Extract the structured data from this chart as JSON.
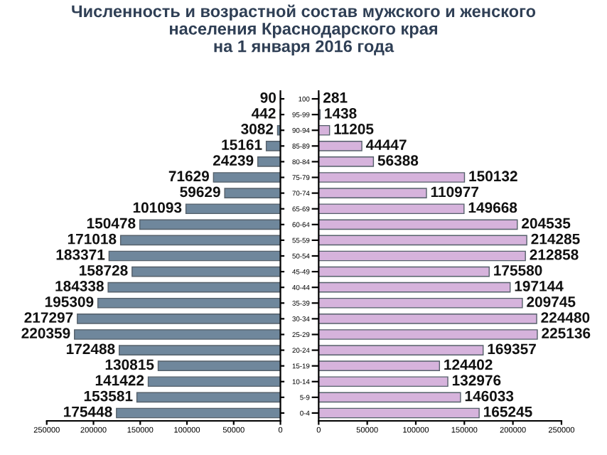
{
  "chart_data": [
    {
      "type": "bar",
      "orientation": "horizontal",
      "title": "Численность и возрастной состав мужского и женского\nнаселения Краснодарского края\nна 1 января 2016 года",
      "categories": [
        null,
        null,
        null,
        null,
        null,
        null,
        null,
        null,
        null,
        null,
        null,
        null,
        null,
        null,
        null,
        null,
        null,
        null,
        null,
        null,
        null
      ],
      "values": [
        90,
        442,
        3082,
        15161,
        24239,
        71629,
        59629,
        101093,
        150478,
        171018,
        183371,
        158728,
        184338,
        195309,
        217297,
        220359,
        172488,
        130815,
        141422,
        153581,
        175448
      ],
      "color": "#6f879c",
      "xlim": [
        250000,
        0
      ],
      "xticks": [
        250000,
        200000,
        150000,
        100000,
        50000,
        0
      ],
      "tick_labels": "x",
      "data_labels": true,
      "grid": false,
      "legend": false
    },
    {
      "type": "bar",
      "orientation": "horizontal",
      "categories": [
        "100",
        "95-99",
        "90-94",
        "85-89",
        "80-84",
        "75-79",
        "70-74",
        "65-69",
        "60-64",
        "55-59",
        "50-54",
        "45-49",
        "40-44",
        "35-39",
        "30-34",
        "25-29",
        "20-24",
        "15-19",
        "10-14",
        "5-9",
        "0-4"
      ],
      "values": [
        281,
        1438,
        11205,
        44447,
        56388,
        150132,
        110977,
        149668,
        204535,
        214285,
        212858,
        175580,
        197144,
        209745,
        224480,
        225136,
        169357,
        124402,
        132976,
        146033,
        165245
      ],
      "color": "#d6b3dc",
      "xlim": [
        0,
        250000
      ],
      "xticks": [
        0,
        50000,
        100000,
        150000,
        200000,
        250000
      ],
      "data_labels": true,
      "grid": false,
      "legend": false
    }
  ]
}
